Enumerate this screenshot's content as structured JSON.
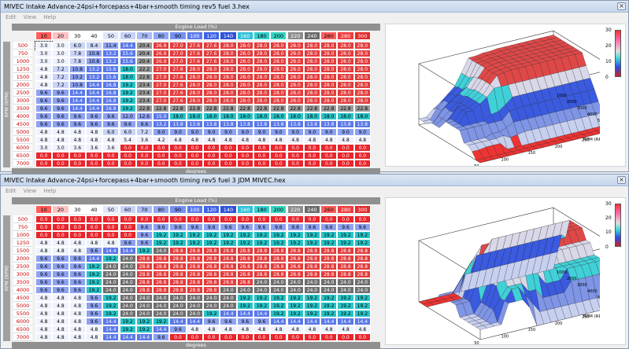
{
  "windows": [
    {
      "title": "MIVEC Intake Advance-24psi+forcepass+4bar+smooth timing rev5 fuel 3.hex",
      "menu": [
        "Edit",
        "View",
        "Help"
      ],
      "load_axis_label": "Engine Load (%)",
      "rpm_axis_label": "RPM (RPM)",
      "bottom_axis_label": "degrees",
      "colorbar": {
        "max": "30",
        "mid1": "20",
        "mid2": "10",
        "min": "0"
      },
      "surface_axes": {
        "load_axis": "Load (%)",
        "rpm_axis": "RPM (RPM)"
      },
      "surface_ticks_load": [
        "300",
        "250",
        "200",
        "150",
        "100",
        "50"
      ],
      "surface_ticks_rpm": [
        "7000",
        "6000",
        "5000",
        "4000",
        "3000",
        "2000",
        "1000"
      ],
      "load_headers": [
        "10",
        "20",
        "30",
        "40",
        "50",
        "60",
        "70",
        "80",
        "90",
        "100",
        "120",
        "140",
        "160",
        "180",
        "200",
        "220",
        "240",
        "260",
        "280",
        "300"
      ],
      "rpm_rows": [
        "500",
        "750",
        "1000",
        "1250",
        "1500",
        "2000",
        "2500",
        "3000",
        "3500",
        "4000",
        "4500",
        "5000",
        "5500",
        "6000",
        "6500",
        "7000"
      ],
      "cells": [
        [
          "3.0",
          "3.0",
          "6.0",
          "8.4",
          "11.4",
          "14.4",
          "20.4",
          "26.9",
          "27.0",
          "27.6",
          "27.6",
          "28.0",
          "28.0",
          "28.0",
          "28.0",
          "28.0",
          "28.0",
          "28.0",
          "28.0",
          "28.0"
        ],
        [
          "3.0",
          "3.0",
          "7.8",
          "10.8",
          "13.2",
          "15.6",
          "20.4",
          "26.9",
          "27.0",
          "27.6",
          "27.6",
          "28.0",
          "28.0",
          "28.0",
          "28.0",
          "28.0",
          "28.0",
          "28.0",
          "28.0",
          "28.0"
        ],
        [
          "3.0",
          "3.0",
          "7.8",
          "10.8",
          "13.2",
          "15.6",
          "20.4",
          "26.9",
          "27.0",
          "27.6",
          "27.6",
          "28.0",
          "28.0",
          "28.0",
          "28.0",
          "28.0",
          "28.0",
          "28.0",
          "28.0",
          "28.0"
        ],
        [
          "4.8",
          "7.2",
          "10.8",
          "13.2",
          "15.6",
          "18.0",
          "22.2",
          "27.0",
          "27.6",
          "28.0",
          "28.0",
          "28.0",
          "28.0",
          "28.0",
          "28.0",
          "28.0",
          "28.0",
          "28.0",
          "28.0",
          "28.0"
        ],
        [
          "4.8",
          "7.2",
          "10.2",
          "13.2",
          "15.6",
          "18.0",
          "22.8",
          "27.0",
          "27.6",
          "28.0",
          "28.0",
          "28.0",
          "28.0",
          "28.0",
          "28.0",
          "28.0",
          "28.0",
          "28.0",
          "28.0",
          "28.0"
        ],
        [
          "4.8",
          "7.2",
          "10.8",
          "14.4",
          "16.8",
          "19.2",
          "23.4",
          "27.0",
          "27.6",
          "28.0",
          "28.0",
          "28.0",
          "28.0",
          "28.0",
          "28.0",
          "28.0",
          "28.0",
          "28.0",
          "28.0",
          "28.0"
        ],
        [
          "9.6",
          "9.6",
          "14.4",
          "14.4",
          "16.8",
          "19.2",
          "23.4",
          "27.0",
          "27.6",
          "28.0",
          "28.0",
          "28.0",
          "28.0",
          "28.0",
          "28.0",
          "28.0",
          "28.0",
          "28.0",
          "28.0",
          "28.0"
        ],
        [
          "9.6",
          "9.6",
          "14.4",
          "14.4",
          "16.8",
          "19.2",
          "23.4",
          "27.0",
          "27.6",
          "28.0",
          "28.0",
          "28.0",
          "28.0",
          "28.0",
          "28.0",
          "28.0",
          "28.0",
          "28.0",
          "28.0",
          "28.0"
        ],
        [
          "9.6",
          "9.6",
          "14.4",
          "14.4",
          "16.8",
          "19.2",
          "22.8",
          "22.8",
          "22.8",
          "22.8",
          "22.8",
          "22.8",
          "22.8",
          "22.8",
          "22.8",
          "22.8",
          "22.8",
          "22.8",
          "22.8",
          "22.8"
        ],
        [
          "9.6",
          "9.6",
          "9.6",
          "9.6",
          "9.6",
          "12.0",
          "12.6",
          "15.0",
          "18.0",
          "18.0",
          "18.0",
          "18.0",
          "18.0",
          "18.0",
          "18.0",
          "18.0",
          "18.0",
          "18.0",
          "18.0",
          "18.0"
        ],
        [
          "9.6",
          "9.6",
          "9.6",
          "9.6",
          "9.6",
          "9.6",
          "9.6",
          "13.2",
          "13.8",
          "13.8",
          "13.8",
          "13.8",
          "13.8",
          "13.8",
          "13.8",
          "13.8",
          "13.8",
          "13.8",
          "13.8",
          "13.8"
        ],
        [
          "4.8",
          "4.8",
          "4.8",
          "4.8",
          "6.0",
          "6.0",
          "7.2",
          "9.0",
          "9.0",
          "9.0",
          "9.0",
          "9.0",
          "9.0",
          "9.0",
          "9.0",
          "9.0",
          "9.0",
          "9.0",
          "9.0",
          "9.0"
        ],
        [
          "4.8",
          "4.8",
          "4.8",
          "4.8",
          "4.8",
          "5.4",
          "3.6",
          "4.2",
          "4.8",
          "4.8",
          "4.8",
          "4.8",
          "4.8",
          "4.8",
          "4.8",
          "4.8",
          "4.8",
          "4.8",
          "4.8",
          "4.8"
        ],
        [
          "3.0",
          "3.0",
          "3.6",
          "3.6",
          "3.6",
          "0.0",
          "0.0",
          "0.0",
          "0.0",
          "0.0",
          "0.0",
          "0.0",
          "0.0",
          "0.0",
          "0.0",
          "0.0",
          "0.0",
          "0.0",
          "0.0",
          "0.0"
        ],
        [
          "0.0",
          "0.0",
          "0.0",
          "0.0",
          "0.0",
          "0.0",
          "0.0",
          "0.0",
          "0.0",
          "0.0",
          "0.0",
          "0.0",
          "0.0",
          "0.0",
          "0.0",
          "0.0",
          "0.0",
          "0.0",
          "0.0",
          "0.0"
        ],
        [
          "0.0",
          "0.0",
          "0.0",
          "0.0",
          "0.0",
          "0.0",
          "0.0",
          "0.0",
          "0.0",
          "0.0",
          "0.0",
          "0.0",
          "0.0",
          "0.0",
          "0.0",
          "0.0",
          "0.0",
          "0.0",
          "0.0",
          "0.0"
        ]
      ]
    },
    {
      "title": "MIVEC Intake Advance-24psi+forcepass+4bar+smooth timing rev5 fuel 3 JDM MIVEC.hex",
      "menu": [
        "Edit",
        "View",
        "Help"
      ],
      "load_axis_label": "Engine Load (%)",
      "rpm_axis_label": "RPM (RPM)",
      "bottom_axis_label": "degrees",
      "colorbar": {
        "max": "30",
        "mid1": "20",
        "mid2": "10",
        "min": "0"
      },
      "surface_axes": {
        "load_axis": "Load (%)",
        "rpm_axis": "RPM (RPM)"
      },
      "surface_ticks_load": [
        "300",
        "250",
        "200",
        "150",
        "100",
        "50"
      ],
      "surface_ticks_rpm": [
        "7000",
        "6000",
        "5000",
        "4000",
        "3000",
        "2000",
        "1000"
      ],
      "load_headers": [
        "10",
        "20",
        "30",
        "40",
        "50",
        "60",
        "70",
        "80",
        "90",
        "100",
        "120",
        "140",
        "160",
        "180",
        "200",
        "220",
        "240",
        "260",
        "280",
        "300"
      ],
      "rpm_rows": [
        "500",
        "750",
        "1000",
        "1250",
        "1500",
        "2000",
        "2500",
        "3000",
        "3500",
        "4000",
        "4500",
        "5000",
        "5500",
        "6000",
        "6500",
        "7000"
      ],
      "cells": [
        [
          "0.0",
          "0.0",
          "0.0",
          "0.0",
          "0.0",
          "0.0",
          "0.0",
          "0.0",
          "0.0",
          "0.0",
          "0.0",
          "0.0",
          "0.0",
          "0.0",
          "0.0",
          "0.0",
          "0.0",
          "0.0",
          "0.0",
          "0.0"
        ],
        [
          "0.0",
          "0.0",
          "0.0",
          "0.0",
          "0.0",
          "0.0",
          "9.6",
          "9.6",
          "9.6",
          "9.6",
          "9.6",
          "9.6",
          "9.6",
          "9.6",
          "9.6",
          "9.6",
          "9.6",
          "9.6",
          "9.6",
          "9.6"
        ],
        [
          "0.0",
          "0.0",
          "0.0",
          "0.0",
          "0.0",
          "0.0",
          "9.6",
          "19.2",
          "19.2",
          "19.2",
          "19.2",
          "19.2",
          "19.2",
          "19.2",
          "19.2",
          "19.2",
          "19.2",
          "19.2",
          "19.2",
          "19.2"
        ],
        [
          "4.8",
          "4.8",
          "4.8",
          "4.8",
          "4.8",
          "9.6",
          "9.6",
          "19.2",
          "19.2",
          "19.2",
          "19.2",
          "19.2",
          "19.2",
          "19.2",
          "19.2",
          "19.2",
          "19.2",
          "19.2",
          "19.2",
          "19.2"
        ],
        [
          "4.8",
          "4.8",
          "4.8",
          "9.6",
          "14.4",
          "14.4",
          "19.2",
          "24.0",
          "28.8",
          "28.8",
          "28.8",
          "28.8",
          "28.8",
          "28.8",
          "28.8",
          "28.8",
          "28.8",
          "28.8",
          "28.8",
          "28.8"
        ],
        [
          "9.6",
          "9.6",
          "9.6",
          "14.4",
          "19.2",
          "24.0",
          "28.8",
          "28.8",
          "28.8",
          "28.8",
          "28.8",
          "28.8",
          "28.8",
          "28.8",
          "28.8",
          "28.8",
          "28.8",
          "28.8",
          "28.8",
          "28.8"
        ],
        [
          "9.6",
          "9.6",
          "9.6",
          "19.2",
          "24.0",
          "24.0",
          "28.8",
          "28.8",
          "28.8",
          "28.8",
          "28.8",
          "28.8",
          "28.8",
          "28.8",
          "28.8",
          "28.8",
          "28.8",
          "28.8",
          "28.8",
          "28.8"
        ],
        [
          "9.6",
          "9.6",
          "9.6",
          "19.2",
          "24.0",
          "24.0",
          "28.8",
          "28.8",
          "28.8",
          "28.8",
          "28.8",
          "28.8",
          "28.8",
          "28.8",
          "28.8",
          "28.8",
          "28.8",
          "28.8",
          "28.8",
          "28.8"
        ],
        [
          "9.6",
          "9.6",
          "9.6",
          "19.2",
          "24.0",
          "24.0",
          "28.8",
          "28.8",
          "28.8",
          "28.8",
          "28.8",
          "28.8",
          "28.8",
          "24.0",
          "24.0",
          "24.0",
          "24.0",
          "24.0",
          "24.0",
          "24.0"
        ],
        [
          "9.6",
          "9.6",
          "9.6",
          "19.2",
          "24.0",
          "24.0",
          "28.8",
          "28.8",
          "28.8",
          "28.8",
          "28.8",
          "24.0",
          "24.0",
          "24.0",
          "24.0",
          "24.0",
          "24.0",
          "24.0",
          "24.0",
          "24.0"
        ],
        [
          "4.8",
          "4.8",
          "4.8",
          "9.6",
          "19.2",
          "24.0",
          "24.0",
          "24.0",
          "24.0",
          "24.0",
          "24.0",
          "24.0",
          "19.2",
          "19.2",
          "19.2",
          "19.2",
          "19.2",
          "19.2",
          "19.2",
          "19.2"
        ],
        [
          "4.8",
          "4.8",
          "4.8",
          "9.6",
          "19.2",
          "24.0",
          "24.0",
          "24.0",
          "24.0",
          "24.0",
          "24.0",
          "24.0",
          "19.2",
          "19.2",
          "19.2",
          "19.2",
          "19.2",
          "19.2",
          "19.2",
          "19.2"
        ],
        [
          "4.8",
          "4.8",
          "4.8",
          "9.6",
          "19.2",
          "24.0",
          "24.0",
          "24.0",
          "24.0",
          "24.0",
          "19.2",
          "14.4",
          "14.4",
          "14.4",
          "19.2",
          "19.2",
          "19.2",
          "19.2",
          "19.2",
          "19.2"
        ],
        [
          "4.8",
          "4.8",
          "4.8",
          "9.6",
          "14.4",
          "19.2",
          "19.2",
          "19.2",
          "14.4",
          "14.4",
          "9.6",
          "9.6",
          "9.6",
          "9.6",
          "14.4",
          "14.4",
          "14.4",
          "14.4",
          "14.4",
          "14.4"
        ],
        [
          "4.8",
          "4.8",
          "4.8",
          "4.8",
          "14.4",
          "19.2",
          "19.2",
          "14.4",
          "9.6",
          "4.8",
          "4.8",
          "4.8",
          "4.8",
          "4.8",
          "4.8",
          "4.8",
          "4.8",
          "4.8",
          "4.8",
          "4.8"
        ],
        [
          "4.8",
          "4.8",
          "4.8",
          "4.8",
          "14.4",
          "14.4",
          "14.4",
          "9.6",
          "0.0",
          "0.0",
          "0.0",
          "0.0",
          "0.0",
          "0.0",
          "0.0",
          "0.0",
          "0.0",
          "0.0",
          "0.0",
          "0.0"
        ]
      ]
    }
  ]
}
